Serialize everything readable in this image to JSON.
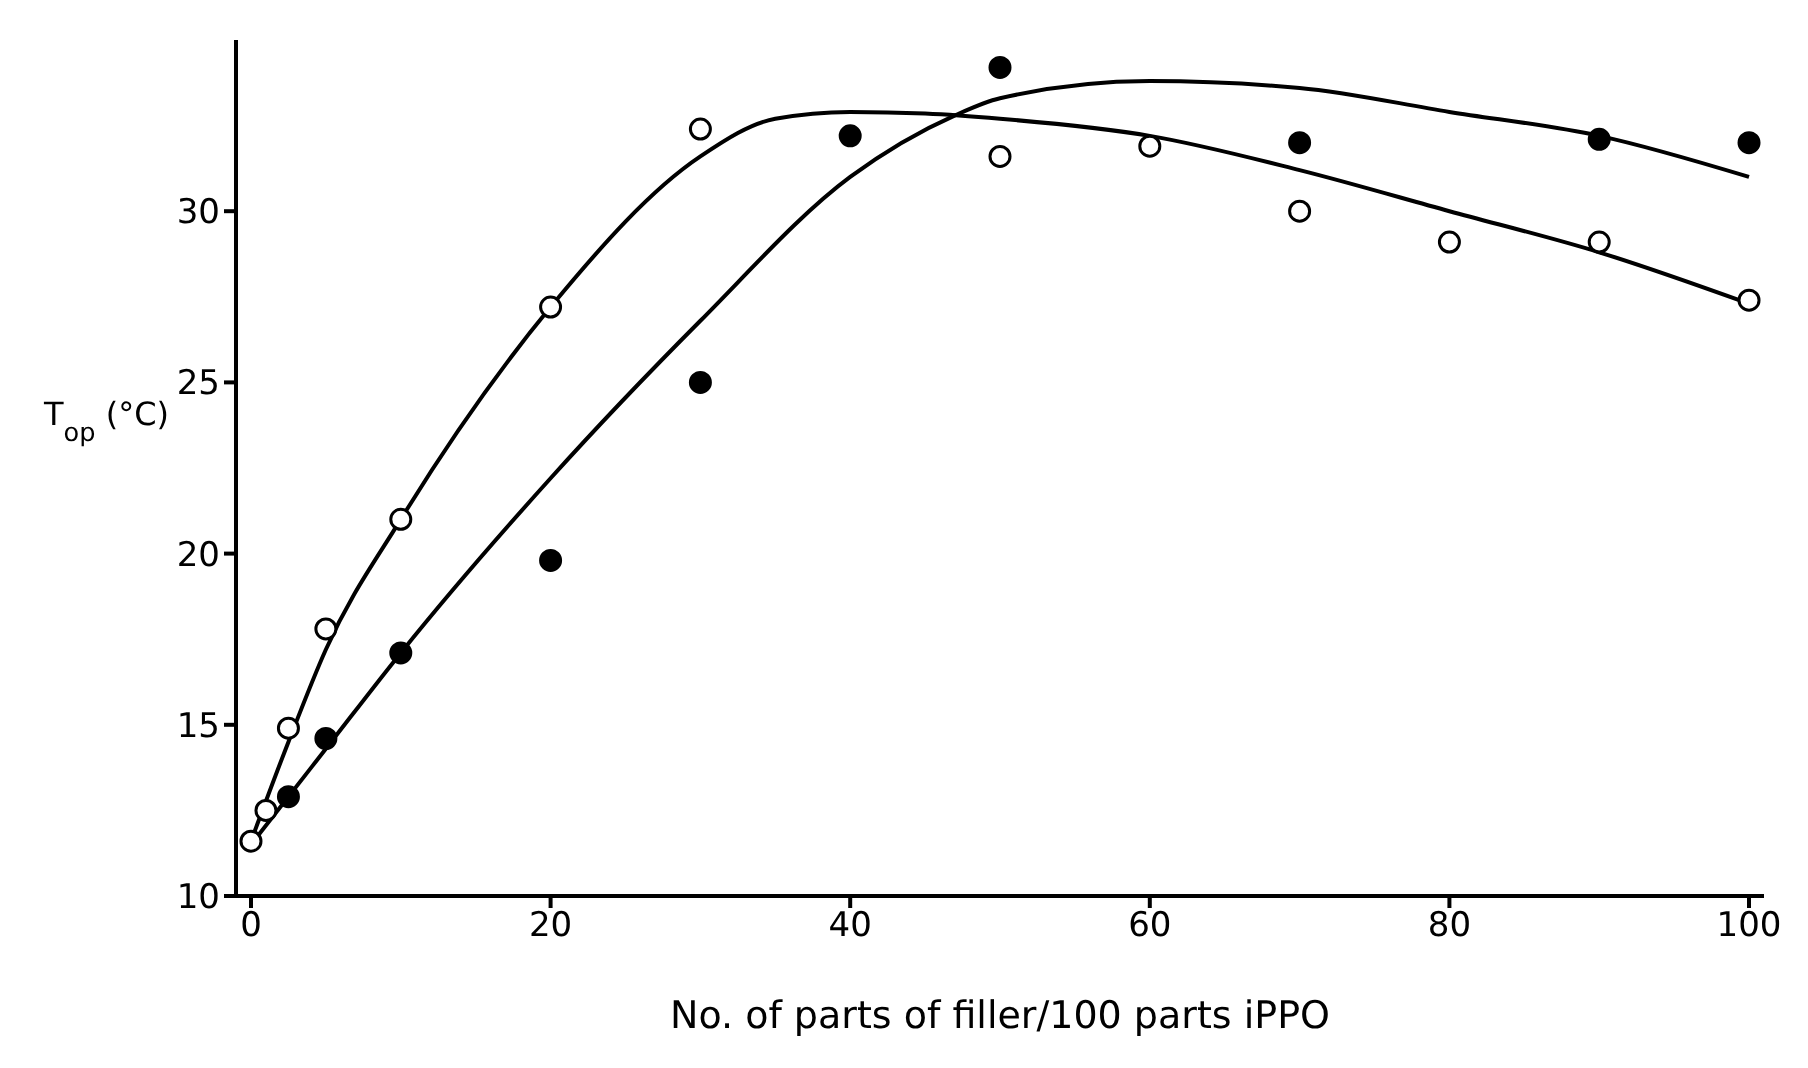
{
  "chart_data": {
    "type": "scatter",
    "xlabel": "No. of parts of filler/100 parts iPPO",
    "ylabel": "T$_{op}$ (°C)",
    "xlim": [
      -1,
      101
    ],
    "ylim": [
      10,
      35
    ],
    "xticks": [
      0,
      20,
      40,
      60,
      80,
      100
    ],
    "yticks": [
      10,
      15,
      20,
      25,
      30
    ],
    "grid": false,
    "legend": false,
    "marker": "circle",
    "series": [
      {
        "type": "scatter",
        "color": "#ffffff",
        "x": [
          0,
          1,
          2.5,
          5,
          10,
          20,
          30,
          50,
          60,
          70,
          80,
          90,
          100
        ],
        "values": [
          11.6,
          12.5,
          14.9,
          17.8,
          21.0,
          27.2,
          32.4,
          31.6,
          31.9,
          30.0,
          29.1,
          29.1,
          27.4
        ]
      },
      {
        "type": "scatter",
        "color": "#000000",
        "x": [
          2.5,
          5,
          10,
          20,
          30,
          40,
          50,
          70,
          90,
          100
        ],
        "values": [
          12.9,
          14.6,
          17.1,
          19.8,
          25.0,
          32.2,
          34.2,
          32.0,
          32.1,
          32.0
        ]
      },
      {
        "type": "line",
        "color": "#000000",
        "marker": "none",
        "line_style": "solid",
        "x": [
          0,
          2.5,
          5,
          10,
          20,
          30,
          35,
          40,
          45,
          50,
          60,
          70,
          80,
          90,
          100
        ],
        "values": [
          11.6,
          14.5,
          17.2,
          21.0,
          27.2,
          31.6,
          32.7,
          32.9,
          32.85,
          32.7,
          32.2,
          31.2,
          30.0,
          28.8,
          27.3
        ]
      },
      {
        "type": "line",
        "color": "#000000",
        "marker": "none",
        "line_style": "solid",
        "x": [
          0,
          5,
          10,
          20,
          30,
          40,
          47,
          50,
          60,
          70,
          80,
          90,
          100
        ],
        "values": [
          11.5,
          14.3,
          17.1,
          22.2,
          26.8,
          31.0,
          32.8,
          33.3,
          33.8,
          33.6,
          32.9,
          32.2,
          31.0
        ]
      }
    ]
  }
}
